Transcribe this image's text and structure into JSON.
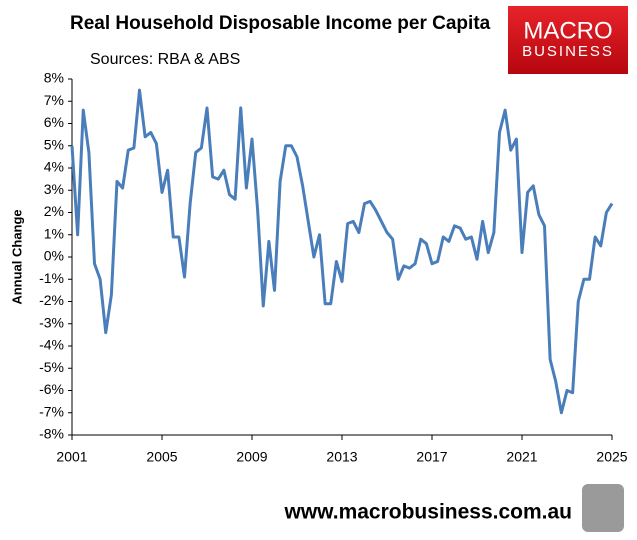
{
  "chart_data": {
    "type": "line",
    "title": "Real Household Disposable Income per Capita",
    "subtitle": "Sources: RBA & ABS",
    "y_label": "Annual Change",
    "x": [
      2001,
      2001.25,
      2001.5,
      2001.75,
      2002,
      2002.25,
      2002.5,
      2002.75,
      2003,
      2003.25,
      2003.5,
      2003.75,
      2004,
      2004.25,
      2004.5,
      2004.75,
      2005,
      2005.25,
      2005.5,
      2005.75,
      2006,
      2006.25,
      2006.5,
      2006.75,
      2007,
      2007.25,
      2007.5,
      2007.75,
      2008,
      2008.25,
      2008.5,
      2008.75,
      2009,
      2009.25,
      2009.5,
      2009.75,
      2010,
      2010.25,
      2010.5,
      2010.75,
      2011,
      2011.25,
      2011.5,
      2011.75,
      2012,
      2012.25,
      2012.5,
      2012.75,
      2013,
      2013.25,
      2013.5,
      2013.75,
      2014,
      2014.25,
      2014.5,
      2014.75,
      2015,
      2015.25,
      2015.5,
      2015.75,
      2016,
      2016.25,
      2016.5,
      2016.75,
      2017,
      2017.25,
      2017.5,
      2017.75,
      2018,
      2018.25,
      2018.5,
      2018.75,
      2019,
      2019.25,
      2019.5,
      2019.75,
      2020,
      2020.25,
      2020.5,
      2020.75,
      2021,
      2021.25,
      2021.5,
      2021.75,
      2022,
      2022.25,
      2022.5,
      2022.75,
      2023,
      2023.25,
      2023.5,
      2023.75,
      2024,
      2024.25,
      2024.5,
      2024.75,
      2025
    ],
    "series": [
      {
        "name": "Annual Change",
        "color": "#4a7ebb",
        "values": [
          5.0,
          1.0,
          6.6,
          4.7,
          -0.3,
          -1.0,
          -3.4,
          -1.7,
          3.4,
          3.1,
          4.8,
          4.9,
          7.5,
          5.4,
          5.6,
          5.1,
          2.9,
          3.9,
          0.9,
          0.9,
          -0.9,
          2.4,
          4.7,
          4.9,
          6.7,
          3.6,
          3.5,
          3.9,
          2.8,
          2.6,
          6.7,
          3.1,
          5.3,
          2.1,
          -2.2,
          0.7,
          -1.5,
          3.4,
          5.0,
          5.0,
          4.5,
          3.2,
          1.6,
          0.0,
          1.0,
          -2.1,
          -2.1,
          -0.2,
          -1.1,
          1.5,
          1.6,
          1.1,
          2.4,
          2.5,
          2.1,
          1.6,
          1.1,
          0.8,
          -1.0,
          -0.4,
          -0.5,
          -0.3,
          0.8,
          0.6,
          -0.3,
          -0.2,
          0.9,
          0.7,
          1.4,
          1.3,
          0.8,
          0.9,
          -0.1,
          1.6,
          0.2,
          1.1,
          5.6,
          6.6,
          4.8,
          5.3,
          0.2,
          2.9,
          3.2,
          1.9,
          1.4,
          -4.6,
          -5.6,
          -7.0,
          -6.0,
          -6.1,
          -2.0,
          -1.0,
          -1.0,
          0.9,
          0.5,
          2.0,
          2.4
        ]
      }
    ],
    "xlim": [
      2001,
      2025
    ],
    "xticks": [
      2001,
      2005,
      2009,
      2013,
      2017,
      2021,
      2025
    ],
    "ylim": [
      -8,
      8
    ],
    "yticks": [
      {
        "value": -8,
        "label": "-8%"
      },
      {
        "value": -7,
        "label": "-7%"
      },
      {
        "value": -6,
        "label": "-6%"
      },
      {
        "value": -5,
        "label": "-5%"
      },
      {
        "value": -4,
        "label": "-4%"
      },
      {
        "value": -3,
        "label": "-3%"
      },
      {
        "value": -2,
        "label": "-2%"
      },
      {
        "value": -1,
        "label": "-1%"
      },
      {
        "value": 0,
        "label": "0%"
      },
      {
        "value": 1,
        "label": "1%"
      },
      {
        "value": 2,
        "label": "2%"
      },
      {
        "value": 3,
        "label": "3%"
      },
      {
        "value": 4,
        "label": "4%"
      },
      {
        "value": 5,
        "label": "5%"
      },
      {
        "value": 6,
        "label": "6%"
      },
      {
        "value": 7,
        "label": "7%"
      },
      {
        "value": 8,
        "label": "8%"
      }
    ],
    "grid": false
  },
  "logo": {
    "line1": "MACRO",
    "line2": "BUSINESS"
  },
  "footer": "www.macrobusiness.com.au"
}
